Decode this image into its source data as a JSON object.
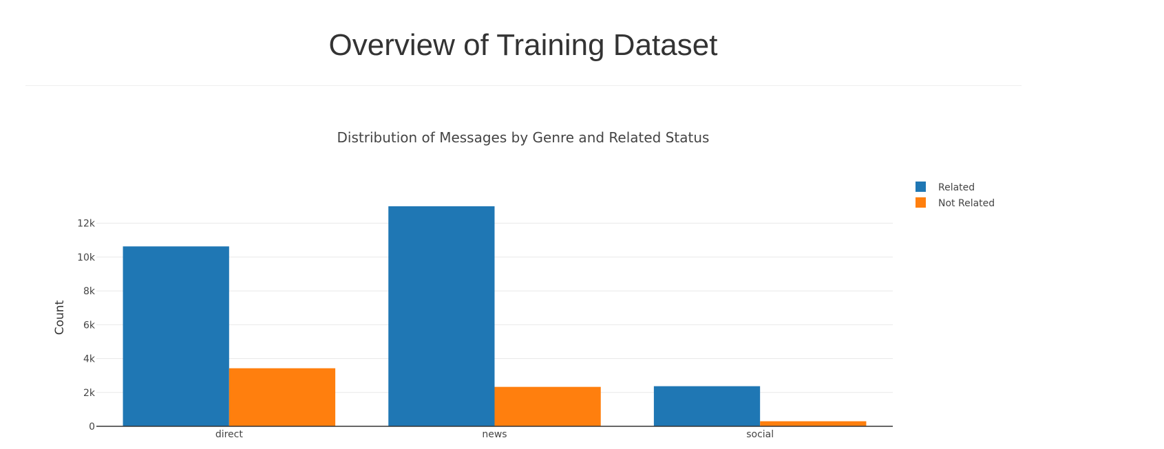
{
  "page": {
    "title": "Overview of Training Dataset"
  },
  "chart_data": {
    "type": "bar",
    "title": "Distribution of Messages by Genre and Related Status",
    "xlabel": "",
    "ylabel": "Count",
    "categories": [
      "direct",
      "news",
      "social"
    ],
    "series": [
      {
        "name": "Related",
        "values": [
          10630,
          13000,
          2370
        ],
        "color": "#1f77b4"
      },
      {
        "name": "Not Related",
        "values": [
          3430,
          2330,
          300
        ],
        "color": "#ff7f0e"
      }
    ],
    "ylim": [
      0,
      13000
    ],
    "yticks": [
      0,
      2000,
      4000,
      6000,
      8000,
      10000,
      12000
    ],
    "ytick_labels": [
      "0",
      "2k",
      "4k",
      "6k",
      "8k",
      "10k",
      "12k"
    ],
    "grid": true,
    "legend_position": "top-right"
  }
}
